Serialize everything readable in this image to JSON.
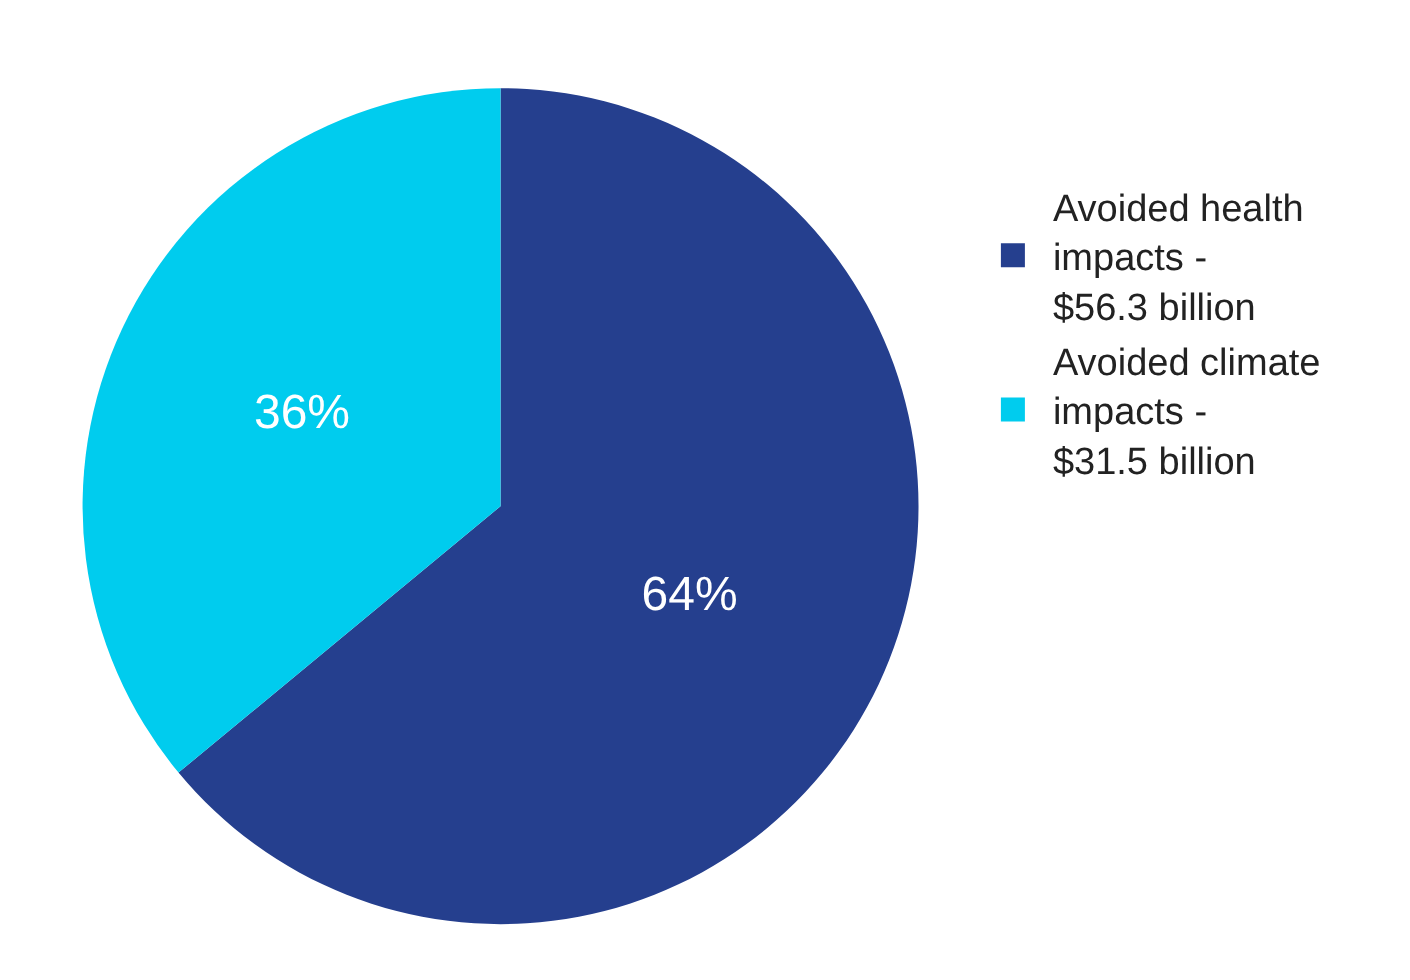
{
  "chart_data": {
    "type": "pie",
    "categories": [
      "Avoided health\nimpacts -\n$56.3 billion",
      "Avoided climate\nimpacts -\n$31.5 billion"
    ],
    "values": [
      64,
      36
    ],
    "colors": [
      "#253f8e",
      "#00ccee"
    ],
    "value_labels": [
      "64%",
      "36%"
    ],
    "legend": "right"
  }
}
